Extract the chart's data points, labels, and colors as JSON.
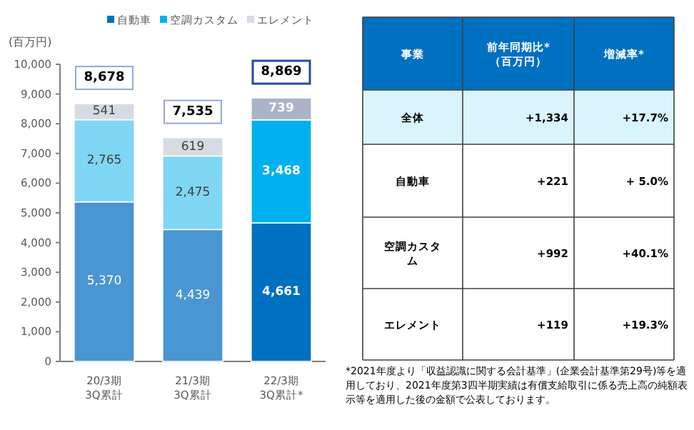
{
  "chart_data": [
    {
      "type": "bar",
      "stacked": true,
      "ylabel": "(百万円)",
      "legend": "top",
      "categories": [
        "20/3期\n3Q累計",
        "21/3期\n3Q累計",
        "22/3期\n3Q累計*"
      ],
      "series": [
        {
          "name": "自動車",
          "color": "#0070c0",
          "colors": [
            "#4a96d2",
            "#4a96d2",
            "#0070c0"
          ],
          "values": [
            5370,
            4439,
            4661
          ],
          "value_labels": [
            "5,370",
            "4,439",
            "4,661"
          ]
        },
        {
          "name": "空調カスタム",
          "color": "#00b0f0",
          "colors": [
            "#7fd6f5",
            "#7fd6f5",
            "#00b0f0"
          ],
          "values": [
            2765,
            2475,
            3468
          ],
          "value_labels": [
            "2,765",
            "2,475",
            "3,468"
          ]
        },
        {
          "name": "エレメント",
          "color": "#d6dbe4",
          "colors": [
            "#d6dbe4",
            "#d6dbe4",
            "#a9b4c8"
          ],
          "values": [
            541,
            619,
            739
          ],
          "value_labels": [
            "541",
            "619",
            "739"
          ]
        }
      ],
      "totals": [
        "8,678",
        "7,535",
        "8,869"
      ],
      "ylim": [
        0,
        10000
      ],
      "yticks": [
        0,
        {
          "value": 1000,
          "label": "1,000"
        },
        {
          "value": 2000,
          "label": "2,000"
        },
        {
          "value": 3000,
          "label": "3,000"
        },
        {
          "value": 4000,
          "label": "4,000"
        },
        {
          "value": 5000,
          "label": "5,000"
        },
        {
          "value": 6000,
          "label": "6,000"
        },
        {
          "value": 7000,
          "label": "7,000"
        },
        {
          "value": 8000,
          "label": "8,000"
        },
        {
          "value": 9000,
          "label": "9,000"
        },
        {
          "value": 10000,
          "label": "10,000"
        }
      ]
    },
    {
      "type": "other",
      "annotations": [
        "事業",
        "前年同期比*\n（百万円）",
        "増減率*",
        "全体",
        "+1,334",
        "+17.7%",
        "自動車",
        "+221",
        "+ 5.0%",
        "空調カスタム",
        "+992",
        "+40.1%",
        "エレメント",
        "+119",
        "+19.3%",
        "*2021年度より「収益認識に関する会計基準」(企業会計基準第29号)等を適用しており、2021年度第3四半期実績は有償支給取引に係る売上高の純額表示等を適用した後の金額で公表しております。"
      ]
    }
  ]
}
